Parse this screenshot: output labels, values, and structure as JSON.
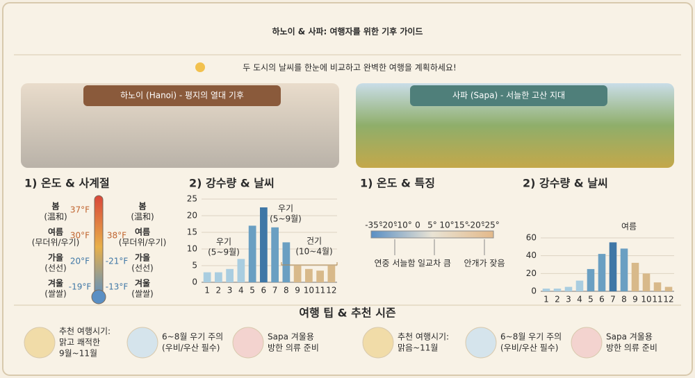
{
  "header": {
    "title": "하노이 & 사파: 여행자를 위한 기후 가이드",
    "subtitle": "두 도시의 날씨를 한눈에 비교하고 완벽한 여행을 계획하세요!"
  },
  "hanoi": {
    "banner": "하노이 (Hanoi) - 평지의 열대 기후",
    "temp_title": "1) 온도 & 사계절",
    "seasons": [
      {
        "name": "봄",
        "sub": "(温和)",
        "left_temp": "37°F"
      },
      {
        "name": "여름",
        "sub": "(무더위/우기)",
        "left_temp": "30°F",
        "right_temp": "38°F"
      },
      {
        "name": "가을",
        "sub": "(선선)",
        "left_temp": "20°F",
        "right_temp": "-21°F"
      },
      {
        "name": "겨울",
        "sub": "(쌀쌀)",
        "left_temp": "-19°F",
        "right_temp": "-13°F"
      }
    ],
    "rain_title": "2) 강수량 & 날씨",
    "chart_data": {
      "type": "bar",
      "categories": [
        "1",
        "2",
        "3",
        "4",
        "5",
        "6",
        "7",
        "8",
        "9",
        "10",
        "11",
        "12"
      ],
      "values": [
        3,
        3,
        4,
        7,
        17,
        22.5,
        16.5,
        12,
        5,
        4,
        3.5,
        5
      ],
      "colors": [
        "#a9cde0",
        "#a9cde0",
        "#a9cde0",
        "#a9cde0",
        "#6a9fc2",
        "#3f77a6",
        "#6a9fc2",
        "#6a9fc2",
        "#d8b98a",
        "#d8b98a",
        "#d8b98a",
        "#d8b98a"
      ],
      "ylim": [
        0,
        25
      ],
      "yticks": [
        0,
        5,
        10,
        15,
        20,
        25
      ],
      "grid": true,
      "annotations": [
        [
          "우기",
          "(5~9월)"
        ],
        [
          "우기",
          "(5~9월)"
        ],
        [
          "건기",
          "(10~4월)"
        ]
      ]
    }
  },
  "sapa": {
    "banner": "사파 (Sapa) - 서늘한 고산 지대",
    "temp_title": "1) 온도 & 특징",
    "scale_labels": [
      "-35°",
      "-20°",
      "-10°",
      "0",
      "5°",
      "10°",
      "15°",
      "-20°",
      "-25°"
    ],
    "features": [
      "연중 서늘함",
      "일교차 큼",
      "안개가 잦음"
    ],
    "rain_title": "2) 강수량 & 날씨",
    "chart_data": {
      "type": "bar",
      "categories": [
        "1",
        "2",
        "3",
        "4",
        "5",
        "6",
        "7",
        "8",
        "9",
        "10",
        "11",
        "12"
      ],
      "values": [
        3,
        3,
        5,
        12,
        25,
        42,
        55,
        48,
        32,
        20,
        10,
        5
      ],
      "colors": [
        "#a9cde0",
        "#a9cde0",
        "#a9cde0",
        "#a9cde0",
        "#6a9fc2",
        "#6a9fc2",
        "#3f77a6",
        "#6a9fc2",
        "#d8b98a",
        "#d8b98a",
        "#d8b98a",
        "#d8b98a"
      ],
      "ylim": [
        0,
        60
      ],
      "yticks": [
        0,
        20,
        40,
        60
      ],
      "grid": true,
      "annotations": [
        [
          "여름"
        ]
      ]
    }
  },
  "tips": {
    "title": "여행 팁 & 추천 시즌",
    "left": [
      [
        "추천 여행시기:",
        "맑고 쾌적한",
        "9월~11월"
      ],
      [
        "6~8월 우기 주의",
        "(우비/우산 필수)"
      ],
      [
        "Sapa 겨울용",
        "방한 의류 준비"
      ]
    ],
    "right": [
      [
        "추천 여행시기:",
        "맑음~11월"
      ],
      [
        "6~8월 우기 주의",
        "(우비/우산 필수)"
      ],
      [
        "Sapa 겨울용",
        "방한 의류 준비"
      ]
    ]
  }
}
